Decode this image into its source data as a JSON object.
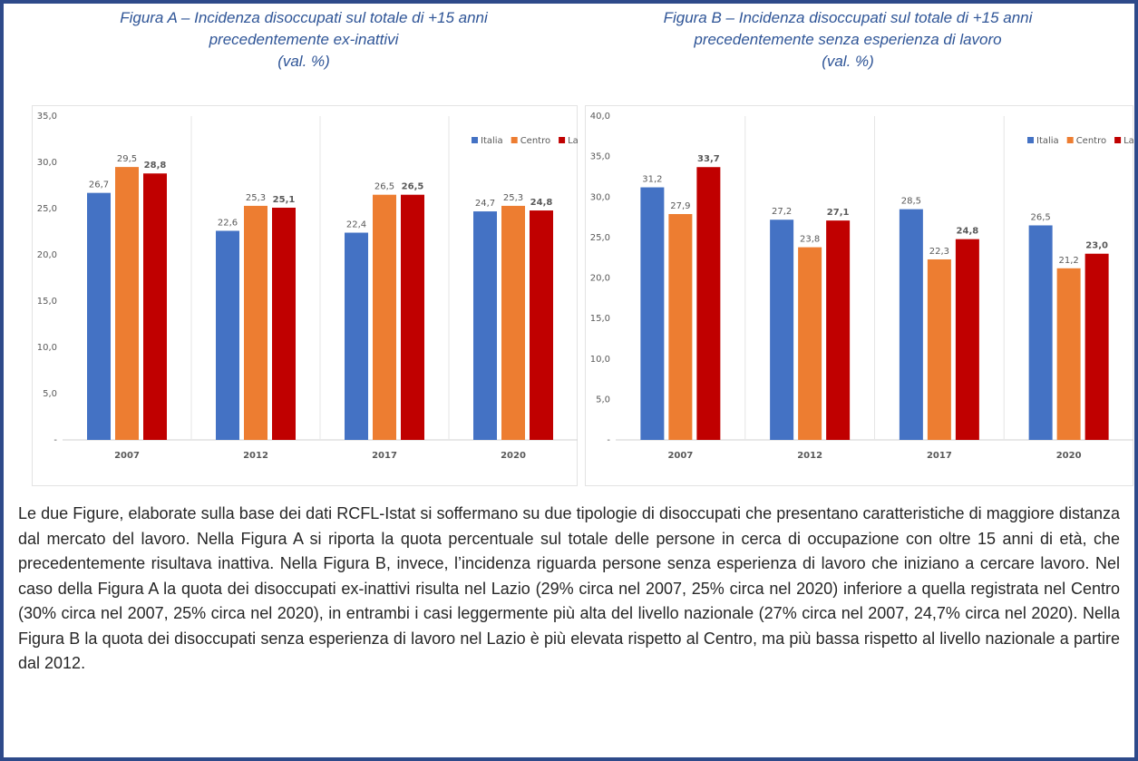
{
  "chart_data": [
    {
      "type": "bar",
      "title": [
        "Figura A – Incidenza disoccupati sul totale di +15 anni",
        "precedentemente ex-inattivi",
        "(val. %)"
      ],
      "categories": [
        "2007",
        "2012",
        "2017",
        "2020"
      ],
      "series": [
        {
          "name": "Italia",
          "color": "#4472c4",
          "values": [
            26.7,
            22.6,
            22.4,
            24.7
          ],
          "value_labels": [
            "26,7",
            "22,6",
            "22,4",
            "24,7"
          ]
        },
        {
          "name": "Centro",
          "color": "#ed7d31",
          "values": [
            29.5,
            25.3,
            26.5,
            25.3
          ],
          "value_labels": [
            "29,5",
            "25,3",
            "26,5",
            "25,3"
          ]
        },
        {
          "name": "Lazio",
          "color": "#c00000",
          "values": [
            28.8,
            25.1,
            26.5,
            24.8
          ],
          "value_labels": [
            "28,8",
            "25,1",
            "26,5",
            "24,8"
          ]
        }
      ],
      "ylim": [
        0,
        35
      ],
      "yticks": [
        {
          "value": 0,
          "label": "-"
        },
        {
          "value": 5,
          "label": "5,0"
        },
        {
          "value": 10,
          "label": "10,0"
        },
        {
          "value": 15,
          "label": "15,0"
        },
        {
          "value": 20,
          "label": "20,0"
        },
        {
          "value": 25,
          "label": "25,0"
        },
        {
          "value": 30,
          "label": "30,0"
        },
        {
          "value": 35,
          "label": "35,0"
        }
      ],
      "legend": "top-right"
    },
    {
      "type": "bar",
      "title": [
        "Figura B – Incidenza disoccupati sul totale di +15 anni",
        "precedentemente senza esperienza di lavoro",
        "(val. %)"
      ],
      "categories": [
        "2007",
        "2012",
        "2017",
        "2020"
      ],
      "series": [
        {
          "name": "Italia",
          "color": "#4472c4",
          "values": [
            31.2,
            27.2,
            28.5,
            26.5
          ],
          "value_labels": [
            "31,2",
            "27,2",
            "28,5",
            "26,5"
          ]
        },
        {
          "name": "Centro",
          "color": "#ed7d31",
          "values": [
            27.9,
            23.8,
            22.3,
            21.2
          ],
          "value_labels": [
            "27,9",
            "23,8",
            "22,3",
            "21,2"
          ]
        },
        {
          "name": "Lazio",
          "color": "#c00000",
          "values": [
            33.7,
            27.1,
            24.8,
            23.0
          ],
          "value_labels": [
            "33,7",
            "27,1",
            "24,8",
            "23,0"
          ]
        }
      ],
      "ylim": [
        0,
        40
      ],
      "yticks": [
        {
          "value": 0,
          "label": "-"
        },
        {
          "value": 5,
          "label": "5,0"
        },
        {
          "value": 10,
          "label": "10,0"
        },
        {
          "value": 15,
          "label": "15,0"
        },
        {
          "value": 20,
          "label": "20,0"
        },
        {
          "value": 25,
          "label": "25,0"
        },
        {
          "value": 30,
          "label": "30,0"
        },
        {
          "value": 35,
          "label": "35,0"
        },
        {
          "value": 40,
          "label": "40,0"
        }
      ],
      "legend": "top-right"
    }
  ],
  "paragraph": "Le due Figure, elaborate sulla base dei dati RCFL-Istat si soffermano su due tipologie di disoccupati che presentano caratteristiche di maggiore distanza dal mercato del lavoro. Nella Figura A si riporta la quota percentuale sul totale delle persone in cerca di occupazione con oltre 15 anni di età, che precedentemente risultava inattiva. Nella Figura B, invece, l’incidenza riguarda persone senza esperienza di lavoro che iniziano a cercare lavoro. Nel caso della Figura A la quota dei disoccupati ex-inattivi risulta nel Lazio (29% circa nel 2007, 25% circa nel 2020) inferiore a quella registrata nel Centro (30% circa nel 2007, 25% circa nel 2020), in entrambi i casi leggermente più alta del livello nazionale (27% circa nel 2007, 24,7% circa nel 2020). Nella Figura B la quota dei disoccupati senza esperienza di lavoro nel Lazio è più elevata rispetto al Centro, ma più bassa rispetto al livello nazionale a partire dal 2012."
}
